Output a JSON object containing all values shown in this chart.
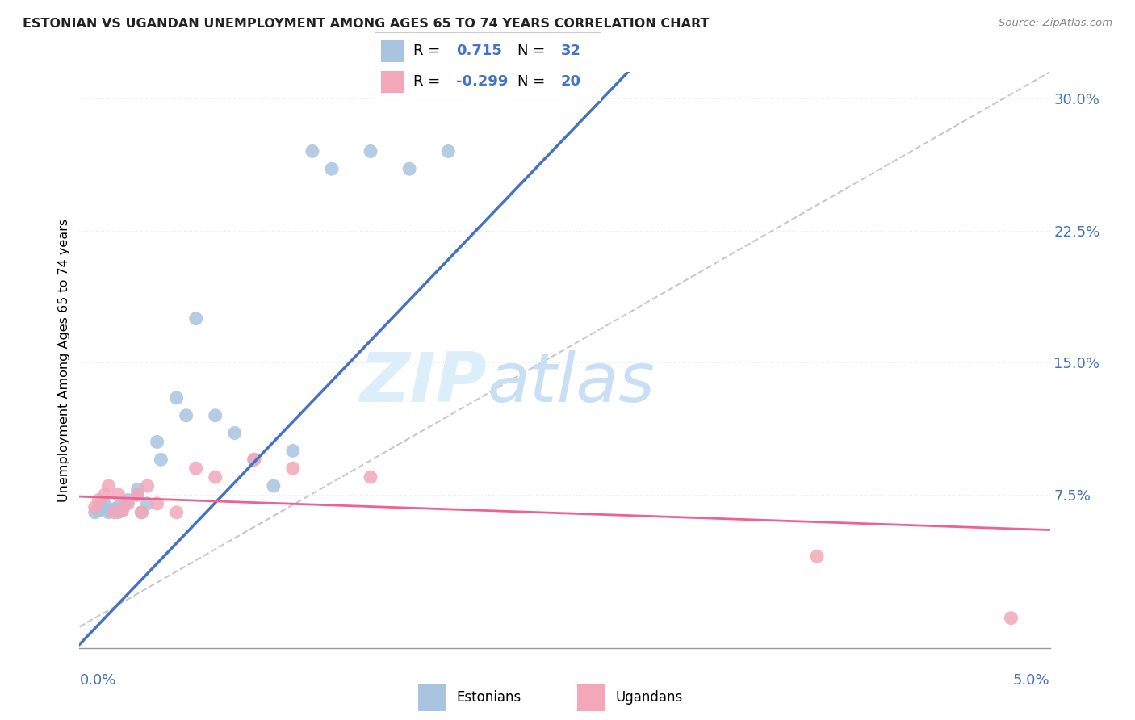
{
  "title": "ESTONIAN VS UGANDAN UNEMPLOYMENT AMONG AGES 65 TO 74 YEARS CORRELATION CHART",
  "source": "Source: ZipAtlas.com",
  "ylabel": "Unemployment Among Ages 65 to 74 years",
  "x_min": 0.0,
  "x_max": 0.05,
  "y_min": -0.012,
  "y_max": 0.315,
  "y_ticks": [
    0.075,
    0.15,
    0.225,
    0.3
  ],
  "y_tick_labels": [
    "7.5%",
    "15.0%",
    "22.5%",
    "30.0%"
  ],
  "estonian_R": 0.715,
  "estonian_N": 32,
  "ugandan_R": -0.299,
  "ugandan_N": 20,
  "estonian_color": "#a8c4e0",
  "ugandan_color": "#f4a7b9",
  "estonian_line_color": "#4472c4",
  "ugandan_line_color": "#f06090",
  "ref_line_color": "#c8c8c8",
  "watermark_color": "#dceefa",
  "background_color": "#ffffff",
  "grid_color": "#e8e8e8",
  "axis_label_color": "#4472c4",
  "title_color": "#222222",
  "source_color": "#888888",
  "estonian_x": [
    0.0008,
    0.001,
    0.001,
    0.0012,
    0.0013,
    0.0015,
    0.0016,
    0.0018,
    0.002,
    0.002,
    0.0022,
    0.0023,
    0.0025,
    0.003,
    0.003,
    0.0032,
    0.0035,
    0.004,
    0.0042,
    0.005,
    0.0055,
    0.006,
    0.007,
    0.008,
    0.009,
    0.01,
    0.011,
    0.012,
    0.013,
    0.015,
    0.017,
    0.019
  ],
  "estonian_y": [
    0.065,
    0.066,
    0.067,
    0.068,
    0.07,
    0.065,
    0.066,
    0.067,
    0.065,
    0.068,
    0.066,
    0.069,
    0.072,
    0.075,
    0.078,
    0.065,
    0.07,
    0.105,
    0.095,
    0.13,
    0.12,
    0.175,
    0.12,
    0.11,
    0.095,
    0.08,
    0.1,
    0.27,
    0.26,
    0.27,
    0.26,
    0.27
  ],
  "ugandan_x": [
    0.0008,
    0.001,
    0.0013,
    0.0015,
    0.0018,
    0.002,
    0.0022,
    0.0025,
    0.003,
    0.0032,
    0.0035,
    0.004,
    0.005,
    0.006,
    0.007,
    0.009,
    0.011,
    0.015,
    0.038,
    0.048
  ],
  "ugandan_y": [
    0.068,
    0.072,
    0.075,
    0.08,
    0.065,
    0.075,
    0.066,
    0.07,
    0.075,
    0.065,
    0.08,
    0.07,
    0.065,
    0.09,
    0.085,
    0.095,
    0.09,
    0.085,
    0.04,
    0.005
  ]
}
